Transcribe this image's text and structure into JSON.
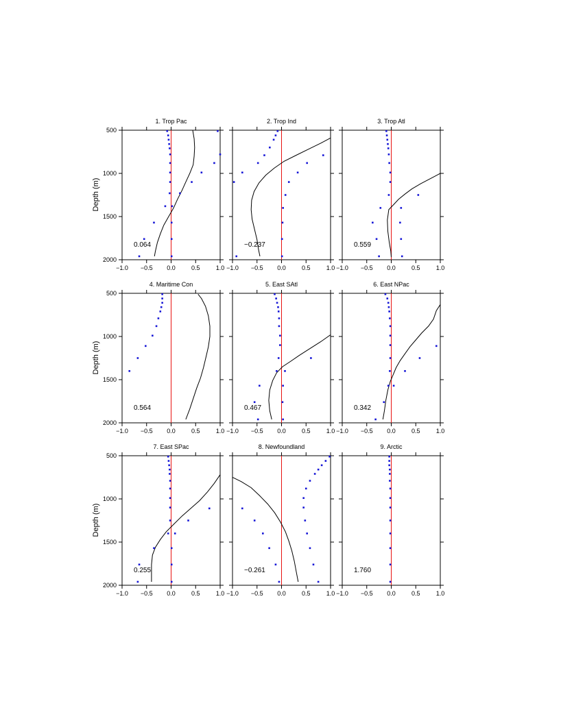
{
  "figure": {
    "ylabel": "Depth (m)"
  },
  "chart_data": [
    {
      "type": "line",
      "title": "1. Trop Pac",
      "annotation": "0.064",
      "xlim": [
        -1,
        1
      ],
      "ylim": [
        2000,
        500
      ],
      "x_ticks": [
        "−1.0",
        "−0.5",
        "0.0",
        "0.5",
        "1.0"
      ],
      "y_ticks": [
        "500",
        "1000",
        "1500",
        "2000"
      ],
      "curve": [
        [
          0.44,
          500
        ],
        [
          0.47,
          600
        ],
        [
          0.48,
          700
        ],
        [
          0.47,
          800
        ],
        [
          0.45,
          900
        ],
        [
          0.38,
          1000
        ],
        [
          0.3,
          1100
        ],
        [
          0.22,
          1200
        ],
        [
          0.13,
          1300
        ],
        [
          0.05,
          1400
        ],
        [
          -0.05,
          1500
        ],
        [
          -0.15,
          1600
        ],
        [
          -0.22,
          1700
        ],
        [
          -0.28,
          1800
        ],
        [
          -0.32,
          1900
        ],
        [
          -0.34,
          1960
        ]
      ],
      "points": [
        [
          -0.08,
          510
        ],
        [
          -0.06,
          560
        ],
        [
          -0.05,
          610
        ],
        [
          -0.04,
          660
        ],
        [
          -0.03,
          710
        ],
        [
          -0.02,
          780
        ],
        [
          -0.02,
          880
        ],
        [
          -0.02,
          990
        ],
        [
          -0.02,
          1100
        ],
        [
          -0.03,
          1230
        ],
        [
          -0.12,
          1380
        ],
        [
          -0.35,
          1570
        ],
        [
          -0.55,
          1760
        ],
        [
          -0.65,
          1960
        ],
        [
          0.02,
          1380
        ],
        [
          0.01,
          1570
        ],
        [
          0.01,
          1760
        ],
        [
          0.01,
          1960
        ],
        [
          0.42,
          1100
        ],
        [
          0.18,
          1230
        ],
        [
          0.62,
          990
        ],
        [
          0.88,
          880
        ],
        [
          1.0,
          780
        ],
        [
          0.95,
          510
        ]
      ]
    },
    {
      "type": "line",
      "title": "2. Trop Ind",
      "annotation": "−0.237",
      "xlim": [
        -1,
        1
      ],
      "ylim": [
        2000,
        500
      ],
      "x_ticks": [
        "−1.0",
        "−0.5",
        "0.0",
        "0.5",
        "1.0"
      ],
      "y_ticks": [
        "500",
        "1000",
        "1500",
        "2000"
      ],
      "curve": [
        [
          1.0,
          590
        ],
        [
          0.8,
          650
        ],
        [
          0.55,
          720
        ],
        [
          0.3,
          790
        ],
        [
          0.05,
          860
        ],
        [
          -0.15,
          940
        ],
        [
          -0.32,
          1020
        ],
        [
          -0.46,
          1110
        ],
        [
          -0.56,
          1210
        ],
        [
          -0.61,
          1310
        ],
        [
          -0.62,
          1420
        ],
        [
          -0.6,
          1530
        ],
        [
          -0.55,
          1650
        ],
        [
          -0.5,
          1770
        ],
        [
          -0.47,
          1880
        ],
        [
          -0.44,
          1960
        ]
      ],
      "points": [
        [
          -0.08,
          510
        ],
        [
          -0.12,
          560
        ],
        [
          -0.16,
          610
        ],
        [
          -0.24,
          700
        ],
        [
          -0.35,
          790
        ],
        [
          -0.48,
          880
        ],
        [
          -0.8,
          990
        ],
        [
          -0.97,
          1100
        ],
        [
          -0.92,
          1960
        ],
        [
          0.85,
          790
        ],
        [
          0.52,
          880
        ],
        [
          0.33,
          990
        ],
        [
          0.15,
          1100
        ],
        [
          0.08,
          1250
        ],
        [
          0.03,
          1400
        ],
        [
          0.02,
          1570
        ],
        [
          0.01,
          1760
        ],
        [
          0.01,
          1960
        ]
      ]
    },
    {
      "type": "line",
      "title": "3. Trop Atl",
      "annotation": "0.559",
      "xlim": [
        -1,
        1
      ],
      "ylim": [
        2000,
        500
      ],
      "x_ticks": [
        "−1.0",
        "−0.5",
        "0.0",
        "0.5",
        "1.0"
      ],
      "y_ticks": [
        "500",
        "1000",
        "1500",
        "2000"
      ],
      "curve": [
        [
          1.0,
          1000
        ],
        [
          0.8,
          1060
        ],
        [
          0.6,
          1120
        ],
        [
          0.42,
          1180
        ],
        [
          0.28,
          1240
        ],
        [
          0.15,
          1300
        ],
        [
          0.05,
          1360
        ],
        [
          -0.05,
          1420
        ],
        [
          -0.08,
          1540
        ],
        [
          -0.07,
          1670
        ],
        [
          -0.04,
          1800
        ],
        [
          -0.01,
          1900
        ],
        [
          0.0,
          1970
        ]
      ],
      "points": [
        [
          -0.1,
          510
        ],
        [
          -0.09,
          560
        ],
        [
          -0.08,
          610
        ],
        [
          -0.07,
          660
        ],
        [
          -0.06,
          710
        ],
        [
          -0.05,
          780
        ],
        [
          -0.04,
          880
        ],
        [
          -0.02,
          990
        ],
        [
          -0.02,
          1100
        ],
        [
          -0.05,
          1250
        ],
        [
          -0.22,
          1400
        ],
        [
          -0.38,
          1570
        ],
        [
          -0.3,
          1760
        ],
        [
          -0.25,
          1960
        ],
        [
          0.2,
          1400
        ],
        [
          0.18,
          1570
        ],
        [
          0.2,
          1760
        ],
        [
          0.22,
          1960
        ],
        [
          0.55,
          1250
        ]
      ]
    },
    {
      "type": "line",
      "title": "4. Maritime Con",
      "annotation": "0.564",
      "xlim": [
        -1,
        1
      ],
      "ylim": [
        2000,
        500
      ],
      "x_ticks": [
        "−1.0",
        "−0.5",
        "0.0",
        "0.5",
        "1.0"
      ],
      "y_ticks": [
        "500",
        "1000",
        "1500",
        "2000"
      ],
      "curve": [
        [
          0.55,
          510
        ],
        [
          0.62,
          560
        ],
        [
          0.7,
          650
        ],
        [
          0.76,
          760
        ],
        [
          0.79,
          880
        ],
        [
          0.79,
          1000
        ],
        [
          0.76,
          1120
        ],
        [
          0.71,
          1240
        ],
        [
          0.66,
          1360
        ],
        [
          0.6,
          1480
        ],
        [
          0.52,
          1600
        ],
        [
          0.45,
          1720
        ],
        [
          0.38,
          1840
        ],
        [
          0.3,
          1960
        ]
      ],
      "points": [
        [
          -0.18,
          510
        ],
        [
          -0.18,
          560
        ],
        [
          -0.18,
          610
        ],
        [
          -0.2,
          660
        ],
        [
          -0.22,
          710
        ],
        [
          -0.26,
          790
        ],
        [
          -0.3,
          880
        ],
        [
          -0.38,
          990
        ],
        [
          -0.52,
          1110
        ],
        [
          -0.68,
          1250
        ],
        [
          -0.85,
          1400
        ]
      ]
    },
    {
      "type": "line",
      "title": "5. East SAtl",
      "annotation": "0.467",
      "xlim": [
        -1,
        1
      ],
      "ylim": [
        2000,
        500
      ],
      "x_ticks": [
        "−1.0",
        "−0.5",
        "0.0",
        "0.5",
        "1.0"
      ],
      "y_ticks": [
        "500",
        "1000",
        "1500",
        "2000"
      ],
      "curve": [
        [
          1.0,
          980
        ],
        [
          0.8,
          1060
        ],
        [
          0.58,
          1140
        ],
        [
          0.36,
          1220
        ],
        [
          0.18,
          1290
        ],
        [
          0.02,
          1350
        ],
        [
          -0.1,
          1420
        ],
        [
          -0.18,
          1510
        ],
        [
          -0.24,
          1620
        ],
        [
          -0.26,
          1740
        ],
        [
          -0.24,
          1860
        ],
        [
          -0.2,
          1960
        ]
      ],
      "points": [
        [
          -0.14,
          510
        ],
        [
          -0.11,
          560
        ],
        [
          -0.09,
          610
        ],
        [
          -0.07,
          660
        ],
        [
          -0.06,
          710
        ],
        [
          -0.05,
          790
        ],
        [
          -0.05,
          880
        ],
        [
          -0.03,
          990
        ],
        [
          -0.03,
          1100
        ],
        [
          -0.06,
          1250
        ],
        [
          -0.1,
          1400
        ],
        [
          -0.45,
          1570
        ],
        [
          -0.55,
          1760
        ],
        [
          -0.48,
          1960
        ],
        [
          0.07,
          1400
        ],
        [
          0.03,
          1570
        ],
        [
          0.02,
          1760
        ],
        [
          0.03,
          1960
        ],
        [
          0.6,
          1250
        ]
      ]
    },
    {
      "type": "line",
      "title": "6. East NPac",
      "annotation": "0.342",
      "xlim": [
        -1,
        1
      ],
      "ylim": [
        2000,
        500
      ],
      "x_ticks": [
        "−1.0",
        "−0.5",
        "0.0",
        "0.5",
        "1.0"
      ],
      "y_ticks": [
        "500",
        "1000",
        "1500",
        "2000"
      ],
      "curve": [
        [
          1.0,
          630
        ],
        [
          0.92,
          700
        ],
        [
          0.86,
          800
        ],
        [
          0.76,
          880
        ],
        [
          0.62,
          960
        ],
        [
          0.5,
          1040
        ],
        [
          0.38,
          1120
        ],
        [
          0.28,
          1200
        ],
        [
          0.18,
          1280
        ],
        [
          0.1,
          1360
        ],
        [
          0.04,
          1440
        ],
        [
          -0.02,
          1520
        ],
        [
          -0.07,
          1620
        ],
        [
          -0.11,
          1740
        ],
        [
          -0.14,
          1860
        ],
        [
          -0.17,
          1960
        ]
      ],
      "points": [
        [
          -0.12,
          510
        ],
        [
          -0.08,
          560
        ],
        [
          -0.06,
          610
        ],
        [
          -0.05,
          660
        ],
        [
          -0.04,
          710
        ],
        [
          -0.03,
          790
        ],
        [
          -0.02,
          880
        ],
        [
          -0.02,
          990
        ],
        [
          -0.02,
          1100
        ],
        [
          -0.02,
          1250
        ],
        [
          -0.03,
          1400
        ],
        [
          -0.06,
          1570
        ],
        [
          -0.15,
          1760
        ],
        [
          -0.32,
          1960
        ],
        [
          0.05,
          1570
        ],
        [
          0.92,
          1110
        ],
        [
          0.58,
          1250
        ],
        [
          0.28,
          1400
        ]
      ]
    },
    {
      "type": "line",
      "title": "7. East SPac",
      "annotation": "0.255",
      "xlim": [
        -1,
        1
      ],
      "ylim": [
        2000,
        500
      ],
      "x_ticks": [
        "−1.0",
        "−0.5",
        "0.0",
        "0.5",
        "1.0"
      ],
      "y_ticks": [
        "500",
        "1000",
        "1500",
        "2000"
      ],
      "curve": [
        [
          1.0,
          720
        ],
        [
          0.88,
          820
        ],
        [
          0.74,
          920
        ],
        [
          0.58,
          1020
        ],
        [
          0.4,
          1110
        ],
        [
          0.22,
          1200
        ],
        [
          0.06,
          1290
        ],
        [
          -0.1,
          1380
        ],
        [
          -0.22,
          1470
        ],
        [
          -0.32,
          1560
        ],
        [
          -0.38,
          1650
        ],
        [
          -0.4,
          1760
        ],
        [
          -0.4,
          1880
        ],
        [
          -0.4,
          1960
        ]
      ],
      "points": [
        [
          -0.06,
          510
        ],
        [
          -0.05,
          560
        ],
        [
          -0.04,
          610
        ],
        [
          -0.03,
          660
        ],
        [
          -0.03,
          710
        ],
        [
          -0.02,
          790
        ],
        [
          -0.02,
          880
        ],
        [
          -0.02,
          990
        ],
        [
          -0.02,
          1100
        ],
        [
          -0.02,
          1250
        ],
        [
          -0.06,
          1400
        ],
        [
          -0.35,
          1570
        ],
        [
          -0.65,
          1760
        ],
        [
          -0.68,
          1960
        ],
        [
          0.08,
          1400
        ],
        [
          0.01,
          1570
        ],
        [
          0.01,
          1760
        ],
        [
          0.01,
          1960
        ],
        [
          0.78,
          1110
        ],
        [
          0.35,
          1250
        ]
      ]
    },
    {
      "type": "line",
      "title": "8. Newfoundland",
      "annotation": "−0.261",
      "xlim": [
        -1,
        1
      ],
      "ylim": [
        2000,
        500
      ],
      "x_ticks": [
        "−1.0",
        "−0.5",
        "0.0",
        "0.5",
        "1.0"
      ],
      "y_ticks": [
        "500",
        "1000",
        "1500",
        "2000"
      ],
      "curve": [
        [
          -1.0,
          750
        ],
        [
          -0.82,
          800
        ],
        [
          -0.62,
          870
        ],
        [
          -0.45,
          960
        ],
        [
          -0.28,
          1060
        ],
        [
          -0.14,
          1160
        ],
        [
          -0.02,
          1270
        ],
        [
          0.08,
          1380
        ],
        [
          0.15,
          1490
        ],
        [
          0.21,
          1600
        ],
        [
          0.26,
          1720
        ],
        [
          0.3,
          1840
        ],
        [
          0.34,
          1960
        ]
      ],
      "points": [
        [
          0.98,
          510
        ],
        [
          0.9,
          560
        ],
        [
          0.82,
          610
        ],
        [
          0.75,
          660
        ],
        [
          0.68,
          710
        ],
        [
          0.58,
          790
        ],
        [
          0.5,
          880
        ],
        [
          0.45,
          990
        ],
        [
          0.45,
          1100
        ],
        [
          0.48,
          1250
        ],
        [
          0.52,
          1400
        ],
        [
          0.58,
          1570
        ],
        [
          0.65,
          1760
        ],
        [
          0.75,
          1960
        ],
        [
          -0.8,
          1110
        ],
        [
          -0.55,
          1250
        ],
        [
          -0.38,
          1400
        ],
        [
          -0.25,
          1570
        ],
        [
          -0.12,
          1760
        ],
        [
          -0.05,
          1960
        ]
      ]
    },
    {
      "type": "line",
      "title": "9. Arctic",
      "annotation": "1.760",
      "xlim": [
        -1,
        1
      ],
      "ylim": [
        2000,
        500
      ],
      "x_ticks": [
        "−1.0",
        "−0.5",
        "0.0",
        "0.5",
        "1.0"
      ],
      "y_ticks": [
        "500",
        "1000",
        "1500",
        "2000"
      ],
      "curve": [],
      "points": [
        [
          -0.04,
          510
        ],
        [
          -0.04,
          560
        ],
        [
          -0.04,
          610
        ],
        [
          -0.03,
          660
        ],
        [
          -0.03,
          710
        ],
        [
          -0.03,
          790
        ],
        [
          -0.02,
          880
        ],
        [
          -0.02,
          990
        ],
        [
          -0.02,
          1100
        ],
        [
          -0.02,
          1250
        ],
        [
          -0.02,
          1400
        ],
        [
          -0.02,
          1570
        ],
        [
          -0.02,
          1760
        ],
        [
          -0.02,
          1960
        ]
      ]
    }
  ]
}
